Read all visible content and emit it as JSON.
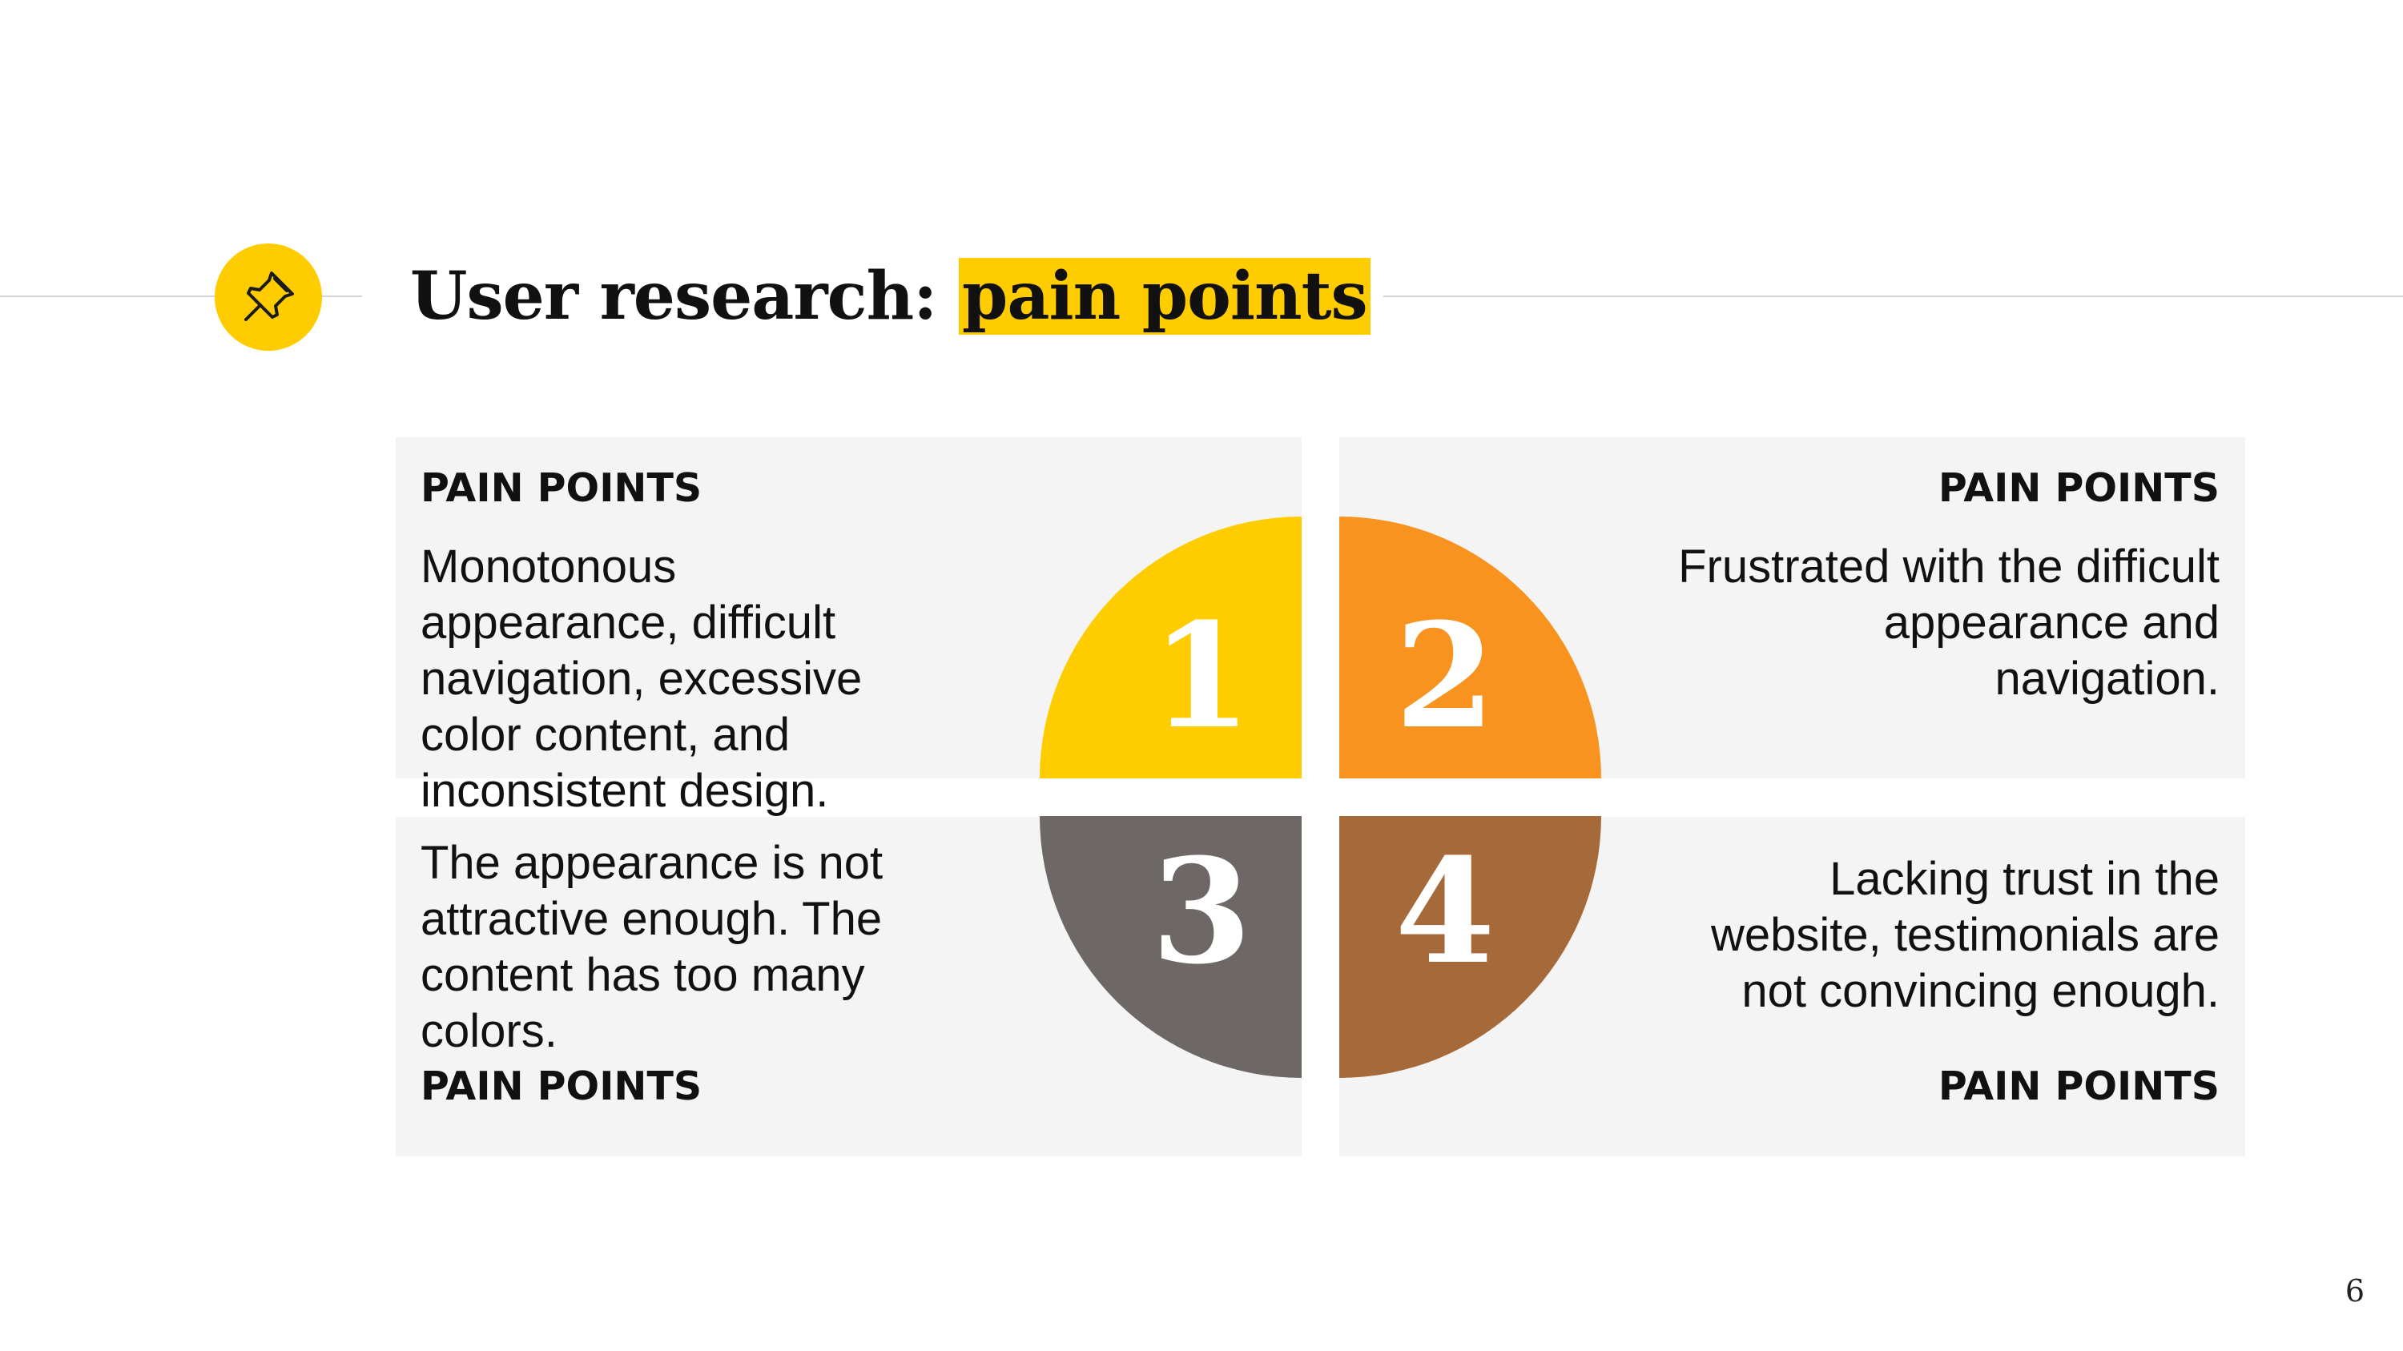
{
  "slide": {
    "title_prefix": "User research: ",
    "title_highlight": "pain points",
    "page_number": "6",
    "icon": "pushpin-icon"
  },
  "quadrants": [
    {
      "number": "1",
      "label": "PAIN POINTS",
      "text": "Monotonous appearance, difficult navigation, excessive color content, and inconsistent design.",
      "color": "#ffcc00"
    },
    {
      "number": "2",
      "label": "PAIN POINTS",
      "text": "Frustrated with the difficult appearance and navigation.",
      "color": "#f7931e"
    },
    {
      "number": "3",
      "label": "PAIN POINTS",
      "text": "The appearance is not attractive enough. The content has too many colors.",
      "color": "#6d6766"
    },
    {
      "number": "4",
      "label": "PAIN POINTS",
      "text": "Lacking trust in the website, testimonials are not convincing enough.",
      "color": "#a5693a"
    }
  ],
  "colors": {
    "accent": "#ffcc00",
    "panel": "#f4f4f4",
    "rule": "#d4d4d4"
  }
}
